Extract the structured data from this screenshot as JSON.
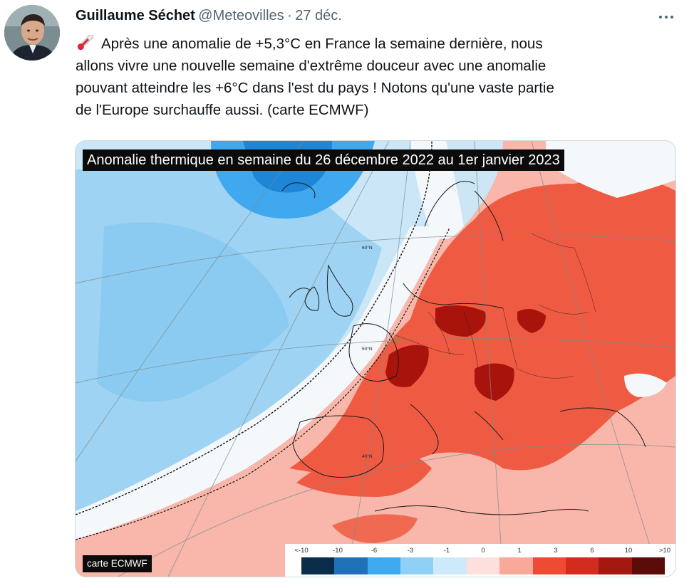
{
  "tweet": {
    "author_name": "Guillaume Séchet",
    "handle": "@Meteovilles",
    "separator": "·",
    "date": "27 déc.",
    "emoji_icon": "thermometer-icon",
    "text_lines": [
      "Après une anomalie de +5,3°C en France la semaine dernière, nous",
      "allons vivre une nouvelle semaine d'extrême douceur avec une anomalie",
      "pouvant atteindre les +6°C dans l'est du pays ! Notons qu'une vaste partie",
      "de l'Europe surchauffe aussi. (carte ECMWF)"
    ]
  },
  "media": {
    "map_title": "Anomalie thermique en semaine du 26 décembre 2022 au 1er janvier 2023",
    "credit": "carte ECMWF",
    "latitude_labels": [
      "60°N",
      "50°N",
      "40°N"
    ],
    "legend": {
      "ticks": [
        "<-10",
        "-10",
        "-6",
        "-3",
        "-1",
        "0",
        "1",
        "3",
        "6",
        "10",
        ">10"
      ],
      "colors": [
        "#0a2e4a",
        "#1f72b8",
        "#3eaaf0",
        "#8fd0f6",
        "#cdeafa",
        "#fde0dc",
        "#f9a99a",
        "#ef4a34",
        "#d42b1f",
        "#a51810",
        "#5a0d08"
      ]
    }
  }
}
